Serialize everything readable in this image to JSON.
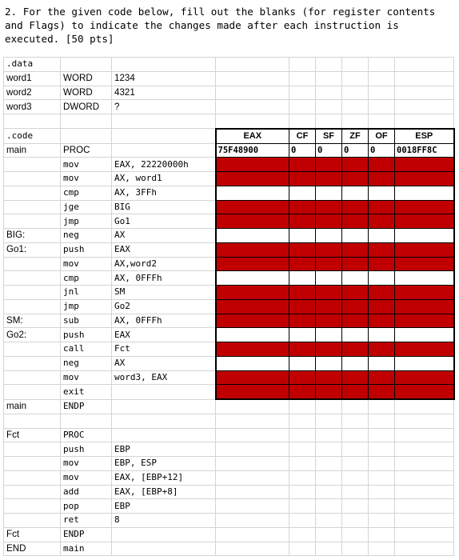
{
  "question": "2. For the given code below, fill out the blanks (for register contents and Flags) to indicate the changes made after each instruction is executed. [50 pts]",
  "table": {
    "headers": [
      "EAX",
      "CF",
      "SF",
      "ZF",
      "OF",
      "ESP"
    ],
    "initial": [
      "75F48900",
      "0",
      "0",
      "0",
      "0",
      "0018FF8C"
    ],
    "rows": [
      {
        "c1": ".data",
        "c2": "",
        "c3": ""
      },
      {
        "c1": "word1",
        "c2": "WORD",
        "c3": "1234"
      },
      {
        "c1": "word2",
        "c2": "WORD",
        "c3": "4321"
      },
      {
        "c1": "word3",
        "c2": "DWORD",
        "c3": "?"
      },
      {
        "c1": "",
        "c2": "",
        "c3": ""
      },
      {
        "c1": ".code",
        "c2": "",
        "c3": ""
      },
      {
        "c1": "main",
        "c2": "PROC",
        "c3": ""
      },
      {
        "c1": "",
        "c2": "mov",
        "c3": "EAX, 22220000h"
      },
      {
        "c1": "",
        "c2": "mov",
        "c3": "AX, word1"
      },
      {
        "c1": "",
        "c2": "cmp",
        "c3": "AX, 3FFh"
      },
      {
        "c1": "",
        "c2": "jge",
        "c3": "BIG"
      },
      {
        "c1": "",
        "c2": "jmp",
        "c3": "Go1"
      },
      {
        "c1": "BIG:",
        "c2": "neg",
        "c3": "AX"
      },
      {
        "c1": "Go1:",
        "c2": "push",
        "c3": "EAX"
      },
      {
        "c1": "",
        "c2": "mov",
        "c3": "AX,word2"
      },
      {
        "c1": "",
        "c2": "cmp",
        "c3": "AX, 0FFFh"
      },
      {
        "c1": "",
        "c2": "jnl",
        "c3": "SM"
      },
      {
        "c1": "",
        "c2": "jmp",
        "c3": "Go2"
      },
      {
        "c1": "SM:",
        "c2": "sub",
        "c3": "AX, 0FFFh"
      },
      {
        "c1": "Go2:",
        "c2": "push",
        "c3": "EAX"
      },
      {
        "c1": "",
        "c2": "call",
        "c3": "Fct"
      },
      {
        "c1": "",
        "c2": "neg",
        "c3": "AX"
      },
      {
        "c1": "",
        "c2": "mov",
        "c3": "word3, EAX"
      },
      {
        "c1": "",
        "c2": "exit",
        "c3": ""
      },
      {
        "c1": "main",
        "c2": "ENDP",
        "c3": ""
      },
      {
        "c1": "",
        "c2": "",
        "c3": ""
      },
      {
        "c1": "Fct",
        "c2": "PROC",
        "c3": ""
      },
      {
        "c1": "",
        "c2": "push",
        "c3": "EBP"
      },
      {
        "c1": "",
        "c2": "mov",
        "c3": "EBP, ESP"
      },
      {
        "c1": "",
        "c2": "mov",
        "c3": "EAX, [EBP+12]"
      },
      {
        "c1": "",
        "c2": "add",
        "c3": "EAX, [EBP+8]"
      },
      {
        "c1": "",
        "c2": "pop",
        "c3": "EBP"
      },
      {
        "c1": "",
        "c2": "ret",
        "c3": "8"
      },
      {
        "c1": "Fct",
        "c2": "ENDP",
        "c3": ""
      },
      {
        "c1": "END",
        "c2": "main",
        "c3": ""
      }
    ],
    "answer_fill_pattern": [
      "red",
      "red",
      "white",
      "red",
      "red",
      "white",
      "red",
      "red",
      "white",
      "red",
      "red",
      "red",
      "white",
      "red",
      "white",
      "red",
      "red"
    ],
    "colors": {
      "answer_cell": "#c00000",
      "blank_cell": "#ffffff",
      "grid": "#d4d4d4"
    }
  }
}
